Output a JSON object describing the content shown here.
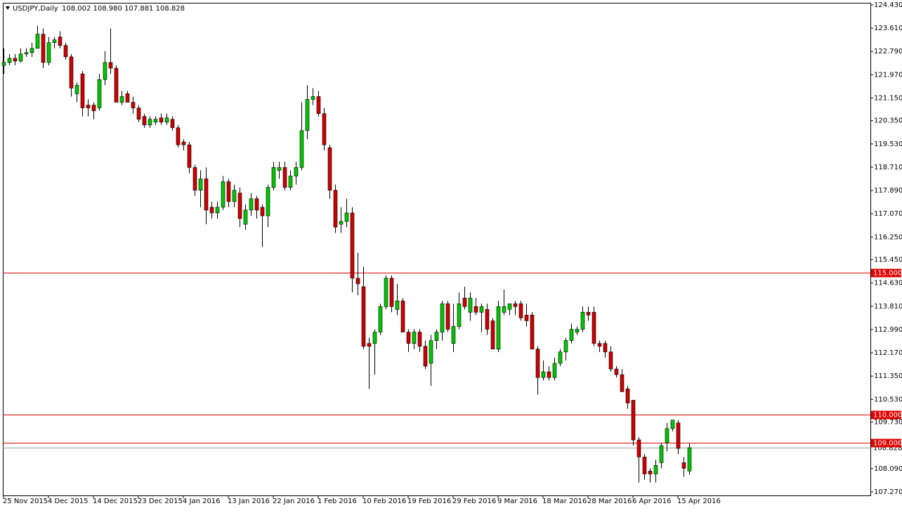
{
  "chart_data": {
    "type": "candlestick",
    "symbol": "USDJPY,Daily",
    "ohlc_text": "108.002 108.980 107.881 108.828",
    "colors": {
      "up": "#00c800",
      "down": "#d00000",
      "wick": "#000000",
      "level": "#e00000",
      "current": "#a0a0a0"
    },
    "ylim": [
      107.144,
      124.504
    ],
    "yticks": [
      {
        "value": 124.43,
        "label": "124.430"
      },
      {
        "value": 123.61,
        "label": "123.610"
      },
      {
        "value": 122.79,
        "label": "122.790"
      },
      {
        "value": 121.97,
        "label": "121.970"
      },
      {
        "value": 121.15,
        "label": "121.150"
      },
      {
        "value": 120.35,
        "label": "120.350"
      },
      {
        "value": 119.53,
        "label": "119.530"
      },
      {
        "value": 118.71,
        "label": "118.710"
      },
      {
        "value": 117.89,
        "label": "117.890"
      },
      {
        "value": 117.07,
        "label": "117.070"
      },
      {
        "value": 116.25,
        "label": "116.250"
      },
      {
        "value": 115.45,
        "label": "115.450"
      },
      {
        "value": 114.63,
        "label": "114.630"
      },
      {
        "value": 113.81,
        "label": "113.810"
      },
      {
        "value": 112.99,
        "label": "112.990"
      },
      {
        "value": 112.17,
        "label": "112.170"
      },
      {
        "value": 111.35,
        "label": "111.350"
      },
      {
        "value": 110.53,
        "label": "110.530"
      },
      {
        "value": 109.73,
        "label": "109.730"
      },
      {
        "value": 108.09,
        "label": "108.090"
      },
      {
        "value": 107.27,
        "label": "107.270"
      }
    ],
    "levels": [
      {
        "value": 115,
        "label": "115.000"
      },
      {
        "value": 110,
        "label": "110.000"
      },
      {
        "value": 109,
        "label": "109.000"
      }
    ],
    "current": {
      "value": 108.828,
      "label": "108.828"
    },
    "categories": [
      "25 Nov 2015",
      null,
      null,
      null,
      null,
      null,
      null,
      null,
      "4 Dec 2015",
      null,
      null,
      null,
      null,
      null,
      null,
      null,
      "14 Dec 2015",
      null,
      null,
      null,
      null,
      null,
      null,
      null,
      "23 Dec 2015",
      null,
      null,
      null,
      null,
      null,
      null,
      null,
      "4 Jan 2016",
      null,
      null,
      null,
      null,
      null,
      null,
      null,
      "13 Jan 2016",
      null,
      null,
      null,
      null,
      null,
      null,
      null,
      "22 Jan 2016",
      null,
      null,
      null,
      null,
      null,
      null,
      null,
      "1 Feb 2016",
      null,
      null,
      null,
      null,
      null,
      null,
      null,
      "10 Feb 2016",
      null,
      null,
      null,
      null,
      null,
      null,
      null,
      "19 Feb 2016",
      null,
      null,
      null,
      null,
      null,
      null,
      null,
      "29 Feb 2016",
      null,
      null,
      null,
      null,
      null,
      null,
      null,
      "9 Mar 2016",
      null,
      null,
      null,
      null,
      null,
      null,
      null,
      "18 Mar 2016",
      null,
      null,
      null,
      null,
      null,
      null,
      null,
      "28 Mar 2016",
      null,
      null,
      null,
      null,
      null,
      null,
      null,
      "6 Apr 2016",
      null,
      null,
      null,
      null,
      null,
      null,
      null,
      "15 Apr 2016",
      null,
      null
    ],
    "ohlc": [
      [
        122.3,
        122.9,
        122.0,
        122.4
      ],
      [
        122.4,
        122.7,
        122.3,
        122.55
      ],
      [
        122.55,
        122.7,
        122.3,
        122.45
      ],
      [
        122.45,
        122.9,
        122.4,
        122.7
      ],
      [
        122.7,
        122.9,
        122.6,
        122.75
      ],
      [
        122.75,
        123.1,
        122.6,
        122.9
      ],
      [
        122.9,
        123.7,
        122.9,
        123.4
      ],
      [
        123.4,
        123.6,
        122.2,
        122.4
      ],
      [
        122.4,
        123.3,
        122.3,
        123.1
      ],
      [
        123.1,
        123.3,
        122.9,
        123.2
      ],
      [
        123.3,
        123.5,
        122.9,
        123.0
      ],
      [
        123.0,
        123.1,
        122.5,
        122.6
      ],
      [
        122.6,
        122.7,
        121.2,
        121.5
      ],
      [
        121.3,
        121.7,
        121.0,
        121.6
      ],
      [
        122.0,
        122.1,
        120.5,
        120.8
      ],
      [
        120.9,
        121.1,
        120.5,
        120.8
      ],
      [
        120.9,
        121.0,
        120.4,
        120.7
      ],
      [
        120.8,
        122.0,
        120.7,
        121.8
      ],
      [
        121.8,
        122.8,
        121.6,
        122.4
      ],
      [
        122.4,
        123.6,
        122.0,
        122.2
      ],
      [
        122.2,
        122.3,
        121.0,
        121.0
      ],
      [
        121.0,
        121.4,
        120.9,
        121.2
      ],
      [
        121.3,
        121.4,
        121.0,
        121.0
      ],
      [
        121.0,
        121.2,
        120.6,
        120.8
      ],
      [
        120.8,
        120.9,
        120.3,
        120.4
      ],
      [
        120.5,
        120.6,
        120.1,
        120.2
      ],
      [
        120.2,
        120.5,
        120.1,
        120.4
      ],
      [
        120.3,
        120.5,
        120.2,
        120.4
      ],
      [
        120.45,
        120.6,
        120.2,
        120.3
      ],
      [
        120.3,
        120.6,
        120.2,
        120.45
      ],
      [
        120.4,
        120.5,
        120.0,
        120.1
      ],
      [
        120.1,
        120.2,
        119.4,
        119.5
      ],
      [
        119.6,
        119.7,
        119.3,
        119.5
      ],
      [
        119.5,
        119.6,
        118.5,
        118.7
      ],
      [
        118.7,
        118.8,
        117.7,
        117.9
      ],
      [
        117.9,
        118.6,
        117.3,
        118.3
      ],
      [
        118.3,
        118.7,
        116.7,
        117.2
      ],
      [
        117.3,
        117.5,
        116.9,
        117.1
      ],
      [
        117.1,
        117.5,
        116.9,
        117.3
      ],
      [
        117.3,
        118.4,
        117.2,
        118.2
      ],
      [
        118.2,
        118.3,
        117.3,
        117.5
      ],
      [
        117.5,
        118.1,
        117.3,
        117.9
      ],
      [
        117.8,
        118.0,
        116.6,
        116.9
      ],
      [
        116.7,
        117.4,
        116.5,
        117.2
      ],
      [
        117.2,
        117.8,
        117.0,
        117.6
      ],
      [
        117.6,
        117.7,
        116.9,
        117.2
      ],
      [
        117.3,
        117.4,
        115.9,
        117.0
      ],
      [
        117.0,
        118.1,
        116.6,
        118.0
      ],
      [
        118.0,
        118.9,
        117.9,
        118.7
      ],
      [
        118.6,
        118.9,
        118.3,
        118.7
      ],
      [
        118.7,
        118.9,
        117.9,
        118.0
      ],
      [
        118.0,
        118.6,
        117.9,
        118.4
      ],
      [
        118.4,
        118.9,
        118.1,
        118.7
      ],
      [
        118.7,
        121.0,
        118.6,
        120.0
      ],
      [
        120.0,
        121.6,
        119.7,
        121.1
      ],
      [
        121.1,
        121.5,
        120.9,
        121.2
      ],
      [
        121.2,
        121.4,
        120.5,
        120.6
      ],
      [
        120.6,
        120.8,
        119.3,
        119.5
      ],
      [
        119.4,
        119.5,
        117.6,
        117.9
      ],
      [
        117.9,
        118.1,
        116.4,
        116.6
      ],
      [
        116.7,
        117.3,
        116.4,
        116.8
      ],
      [
        116.8,
        117.6,
        116.6,
        117.1
      ],
      [
        117.1,
        117.3,
        114.3,
        114.8
      ],
      [
        114.8,
        115.7,
        114.2,
        114.6
      ],
      [
        114.5,
        115.2,
        112.3,
        112.4
      ],
      [
        112.5,
        112.7,
        110.9,
        112.4
      ],
      [
        112.5,
        113.0,
        111.4,
        112.9
      ],
      [
        112.9,
        113.9,
        112.8,
        113.8
      ],
      [
        113.8,
        114.9,
        113.7,
        114.8
      ],
      [
        114.8,
        114.9,
        113.6,
        113.8
      ],
      [
        113.7,
        114.6,
        113.5,
        114.0
      ],
      [
        114.0,
        114.1,
        112.9,
        112.9
      ],
      [
        112.9,
        113.0,
        112.2,
        112.5
      ],
      [
        112.5,
        113.0,
        112.3,
        112.9
      ],
      [
        112.9,
        113.0,
        112.2,
        112.4
      ],
      [
        112.4,
        112.6,
        111.6,
        111.7
      ],
      [
        111.8,
        112.8,
        111.0,
        112.6
      ],
      [
        112.6,
        113.0,
        112.3,
        112.9
      ],
      [
        112.9,
        114.0,
        112.6,
        113.9
      ],
      [
        113.9,
        114.0,
        112.9,
        113.0
      ],
      [
        112.5,
        113.9,
        112.2,
        113.1
      ],
      [
        113.1,
        114.3,
        113.0,
        113.9
      ],
      [
        114.1,
        114.5,
        113.7,
        113.8
      ],
      [
        113.6,
        114.3,
        113.3,
        114.1
      ],
      [
        113.8,
        114.1,
        113.5,
        113.6
      ],
      [
        113.6,
        113.9,
        112.9,
        113.8
      ],
      [
        113.7,
        113.9,
        112.8,
        113.0
      ],
      [
        113.3,
        113.4,
        112.3,
        112.3
      ],
      [
        112.3,
        114.0,
        112.2,
        113.8
      ],
      [
        113.6,
        114.4,
        113.5,
        113.8
      ],
      [
        113.7,
        113.9,
        113.5,
        113.9
      ],
      [
        113.9,
        114.0,
        113.5,
        113.8
      ],
      [
        113.9,
        114.0,
        113.3,
        113.4
      ],
      [
        113.5,
        113.9,
        113.1,
        113.3
      ],
      [
        113.5,
        113.6,
        112.3,
        112.3
      ],
      [
        112.3,
        112.4,
        110.7,
        111.3
      ],
      [
        111.3,
        111.9,
        111.2,
        111.5
      ],
      [
        111.5,
        111.7,
        111.2,
        111.3
      ],
      [
        111.3,
        112.0,
        111.2,
        111.8
      ],
      [
        111.8,
        112.3,
        111.7,
        112.2
      ],
      [
        112.2,
        112.7,
        111.9,
        112.6
      ],
      [
        112.6,
        113.2,
        112.5,
        113.0
      ],
      [
        112.9,
        113.1,
        112.8,
        113.0
      ],
      [
        113.0,
        113.8,
        112.9,
        113.6
      ],
      [
        113.6,
        113.8,
        113.3,
        113.5
      ],
      [
        113.6,
        113.8,
        112.4,
        112.5
      ],
      [
        112.5,
        112.6,
        112.2,
        112.4
      ],
      [
        112.5,
        112.6,
        112.0,
        112.2
      ],
      [
        112.2,
        112.4,
        111.5,
        111.6
      ],
      [
        111.6,
        111.7,
        111.3,
        111.4
      ],
      [
        111.4,
        111.6,
        110.8,
        110.8
      ],
      [
        110.9,
        111.0,
        110.2,
        110.4
      ],
      [
        110.5,
        110.5,
        108.9,
        109.1
      ],
      [
        109.1,
        109.2,
        107.6,
        108.5
      ],
      [
        108.5,
        108.6,
        107.7,
        107.9
      ],
      [
        108.0,
        108.1,
        107.6,
        107.9
      ],
      [
        107.9,
        108.4,
        107.6,
        108.2
      ],
      [
        108.3,
        109.0,
        108.1,
        108.9
      ],
      [
        109.0,
        109.7,
        108.7,
        109.5
      ],
      [
        109.5,
        109.8,
        109.4,
        109.8
      ],
      [
        109.7,
        109.8,
        108.6,
        108.8
      ],
      [
        108.3,
        108.5,
        107.8,
        108.1
      ],
      [
        108.002,
        108.98,
        107.881,
        108.828
      ]
    ]
  }
}
